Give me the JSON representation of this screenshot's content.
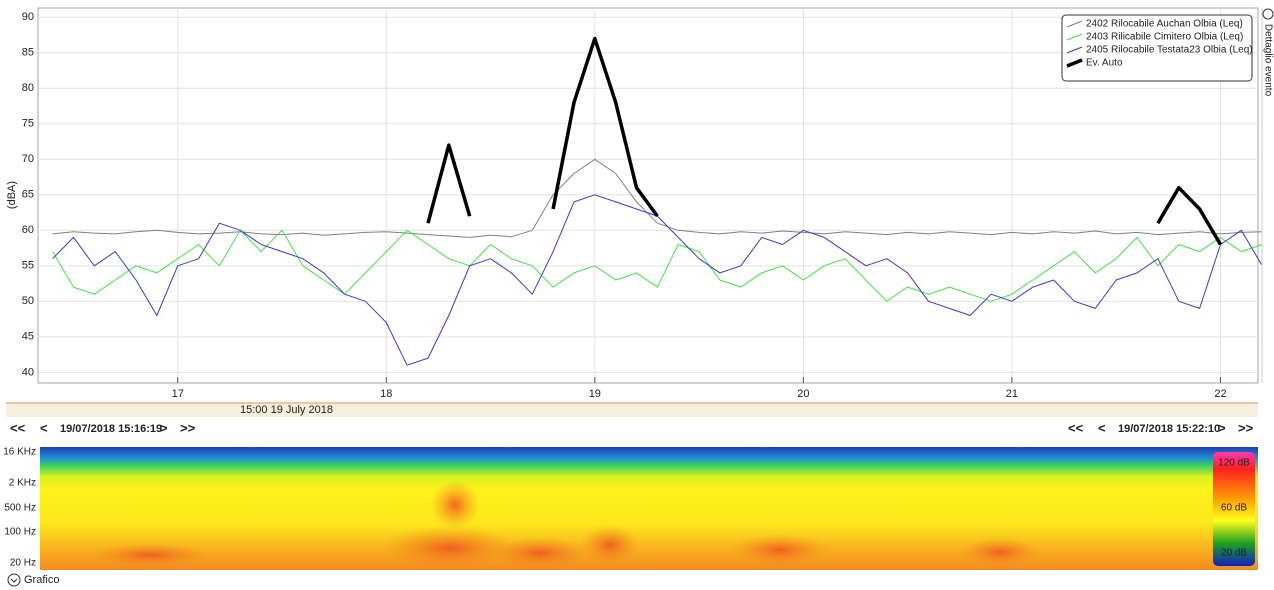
{
  "chart_data": {
    "type": "line",
    "y_label": "(dBA)",
    "x": [
      16.4,
      16.5,
      16.6,
      16.7,
      16.8,
      16.9,
      17.0,
      17.1,
      17.2,
      17.3,
      17.4,
      17.5,
      17.6,
      17.7,
      17.8,
      17.9,
      18.0,
      18.1,
      18.2,
      18.3,
      18.4,
      18.5,
      18.6,
      18.7,
      18.8,
      18.9,
      19.0,
      19.1,
      19.2,
      19.3,
      19.4,
      19.5,
      19.6,
      19.7,
      19.8,
      19.9,
      20.0,
      20.1,
      20.2,
      20.3,
      20.4,
      20.5,
      20.6,
      20.7,
      20.8,
      20.9,
      21.0,
      21.1,
      21.2,
      21.3,
      21.4,
      21.5,
      21.6,
      21.7,
      21.8,
      21.9,
      22.0,
      22.1,
      22.2
    ],
    "series": [
      {
        "name": "2402 Rilocabile Auchan Olbia (Leq)",
        "color": "#808080",
        "width": 1,
        "values": [
          59.5,
          59.8,
          59.6,
          59.5,
          59.8,
          60,
          59.7,
          59.5,
          59.6,
          59.8,
          59.5,
          59.4,
          59.6,
          59.3,
          59.5,
          59.7,
          59.8,
          59.6,
          59.4,
          59.2,
          59.0,
          59.3,
          59.1,
          60,
          65,
          68,
          70,
          68,
          64,
          61,
          60,
          59.7,
          59.5,
          59.8,
          59.6,
          59.9,
          59.7,
          59.5,
          59.8,
          59.6,
          59.4,
          59.7,
          59.5,
          59.8,
          59.6,
          59.4,
          59.7,
          59.5,
          59.8,
          59.6,
          59.9,
          59.5,
          59.7,
          59.4,
          59.6,
          59.8,
          59.5,
          59.7,
          59.8
        ]
      },
      {
        "name": "2403 Rilicabile Cimitero Olbia (Leq)",
        "color": "#45e045",
        "width": 1,
        "values": [
          57,
          52,
          51,
          53,
          55,
          54,
          56,
          58,
          55,
          60,
          57,
          60,
          55,
          53,
          51,
          54,
          57,
          60,
          58,
          56,
          55,
          58,
          56,
          55,
          52,
          54,
          55,
          53,
          54,
          52,
          58,
          57,
          53,
          52,
          54,
          55,
          53,
          55,
          56,
          53,
          50,
          52,
          51,
          52,
          51,
          50,
          51,
          53,
          55,
          57,
          54,
          56,
          59,
          55,
          58,
          57,
          59,
          57,
          58
        ]
      },
      {
        "name": "2405 Rilocabile Testata23 Olbia (Leq)",
        "color": "#3a3ad0",
        "width": 1,
        "values": [
          56,
          59,
          55,
          57,
          53,
          48,
          55,
          56,
          61,
          60,
          58,
          57,
          56,
          54,
          51,
          50,
          47,
          41,
          42,
          48,
          55,
          56,
          54,
          51,
          57,
          64,
          65,
          64,
          63,
          62,
          59,
          56,
          54,
          55,
          59,
          58,
          60,
          59,
          57,
          55,
          56,
          54,
          50,
          49,
          48,
          51,
          50,
          52,
          53,
          50,
          49,
          53,
          54,
          56,
          50,
          49,
          58,
          60,
          55
        ]
      },
      {
        "name": "Ev. Auto",
        "color": "#000000",
        "width": 3.5,
        "values": [
          null,
          null,
          null,
          null,
          null,
          null,
          null,
          null,
          null,
          null,
          null,
          null,
          null,
          null,
          null,
          null,
          null,
          null,
          61,
          72,
          62,
          null,
          null,
          null,
          63,
          78,
          87,
          78,
          66,
          62,
          null,
          null,
          null,
          null,
          null,
          null,
          null,
          null,
          null,
          null,
          null,
          null,
          null,
          null,
          null,
          null,
          null,
          null,
          null,
          null,
          null,
          null,
          null,
          61,
          66,
          63,
          58,
          null,
          null
        ]
      }
    ],
    "xlim": [
      16.33,
      22.18
    ],
    "ylim": [
      38.5,
      91.3
    ],
    "xticks": [
      17,
      18,
      19,
      20,
      21,
      22
    ],
    "yticks": [
      40,
      45,
      50,
      55,
      60,
      65,
      70,
      75,
      80,
      85,
      90
    ],
    "grid": true,
    "legend": "top-right"
  },
  "time_band": "15:00 19 July 2018",
  "navigation": {
    "left": {
      "first": "<<",
      "prev": "<",
      "time": "19/07/2018 15:16:19",
      "next": ">",
      "last": ">>"
    },
    "right": {
      "first": "<<",
      "prev": "<",
      "time": "19/07/2018 15:22:10",
      "next": ">",
      "last": ">>"
    }
  },
  "spectrogram": {
    "frequency_labels": [
      "16 KHz",
      "2 KHz",
      "500 Hz",
      "100 Hz",
      "20 Hz"
    ],
    "colorbar_labels": [
      "120 dB",
      "60 dB",
      "20 dB"
    ]
  },
  "side_panel": "Dettaglio evento",
  "footer": "Grafico"
}
